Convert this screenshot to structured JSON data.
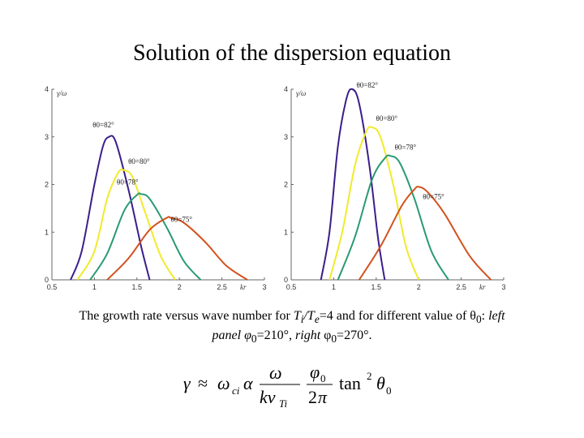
{
  "title": "Solution of the dispersion equation",
  "caption": {
    "part1": "The growth rate versus wave number for ",
    "ti": "T",
    "ti_sub": "i",
    "slash": "/",
    "te": "T",
    "te_sub": "e",
    "part2": "=4 and for different value of θ",
    "theta_sub": "0",
    "colon": ": ",
    "left": "left",
    "part3": "panel φ",
    "phi_sub1": "0",
    "part4": "=210°, ",
    "right": "right",
    "part5": " φ",
    "phi_sub2": "0",
    "part6": "=270°."
  },
  "colors": {
    "purple": "#3b1e8a",
    "yellow": "#f2ea2a",
    "green": "#2a9a72",
    "orange": "#d2521e"
  },
  "chart_data": [
    {
      "type": "line",
      "y_axis_label": "γ/ω",
      "x_axis_label": "kr",
      "xlim": [
        0.5,
        3
      ],
      "ylim": [
        0,
        4
      ],
      "x_ticks": [
        "0.5",
        "1",
        "1.5",
        "2",
        "2.5",
        "3"
      ],
      "y_ticks": [
        "0",
        "1",
        "2",
        "3",
        "4"
      ],
      "series": [
        {
          "name": "θ0=82°",
          "color": "#3b1e8a",
          "x": [
            0.72,
            0.85,
            1.0,
            1.1,
            1.17,
            1.25,
            1.4,
            1.55,
            1.65
          ],
          "y": [
            0,
            0.6,
            2.0,
            2.8,
            3.0,
            2.9,
            1.9,
            0.7,
            0
          ]
        },
        {
          "name": "θ0=80°",
          "color": "#f2ea2a",
          "x": [
            0.8,
            1.0,
            1.15,
            1.28,
            1.35,
            1.45,
            1.6,
            1.78,
            1.95
          ],
          "y": [
            0,
            0.6,
            1.7,
            2.25,
            2.3,
            2.15,
            1.4,
            0.5,
            0
          ]
        },
        {
          "name": "θ0=78°",
          "color": "#2a9a72",
          "x": [
            0.95,
            1.15,
            1.35,
            1.5,
            1.55,
            1.65,
            1.85,
            2.05,
            2.25
          ],
          "y": [
            0,
            0.55,
            1.45,
            1.78,
            1.8,
            1.7,
            1.1,
            0.4,
            0
          ]
        },
        {
          "name": "θ0=75°",
          "color": "#d2521e",
          "x": [
            1.15,
            1.4,
            1.65,
            1.85,
            1.9,
            2.05,
            2.3,
            2.55,
            2.8
          ],
          "y": [
            0,
            0.45,
            1.05,
            1.3,
            1.3,
            1.2,
            0.8,
            0.3,
            0
          ]
        }
      ]
    },
    {
      "type": "line",
      "y_axis_label": "γ/ω",
      "x_axis_label": "kr",
      "xlim": [
        0.5,
        3
      ],
      "ylim": [
        0,
        4
      ],
      "x_ticks": [
        "0.5",
        "1",
        "1.5",
        "2",
        "2.5",
        "3"
      ],
      "y_ticks": [
        "0",
        "1",
        "2",
        "3",
        "4"
      ],
      "series": [
        {
          "name": "θ0=82°",
          "color": "#3b1e8a",
          "x": [
            0.85,
            0.95,
            1.05,
            1.15,
            1.22,
            1.3,
            1.42,
            1.52,
            1.6
          ],
          "y": [
            0,
            1.0,
            2.8,
            3.8,
            4.0,
            3.7,
            2.4,
            0.9,
            0
          ]
        },
        {
          "name": "θ0=80°",
          "color": "#f2ea2a",
          "x": [
            0.95,
            1.1,
            1.25,
            1.38,
            1.45,
            1.55,
            1.7,
            1.85,
            2.0
          ],
          "y": [
            0,
            1.0,
            2.4,
            3.1,
            3.2,
            3.0,
            2.0,
            0.7,
            0
          ]
        },
        {
          "name": "θ0=78°",
          "color": "#2a9a72",
          "x": [
            1.05,
            1.25,
            1.45,
            1.6,
            1.67,
            1.78,
            1.95,
            2.15,
            2.35
          ],
          "y": [
            0,
            0.9,
            2.1,
            2.55,
            2.6,
            2.45,
            1.7,
            0.6,
            0
          ]
        },
        {
          "name": "θ0=75°",
          "color": "#d2521e",
          "x": [
            1.3,
            1.55,
            1.8,
            1.95,
            2.0,
            2.1,
            2.3,
            2.6,
            2.85
          ],
          "y": [
            0,
            0.7,
            1.55,
            1.9,
            1.95,
            1.85,
            1.4,
            0.5,
            0
          ]
        }
      ]
    }
  ]
}
